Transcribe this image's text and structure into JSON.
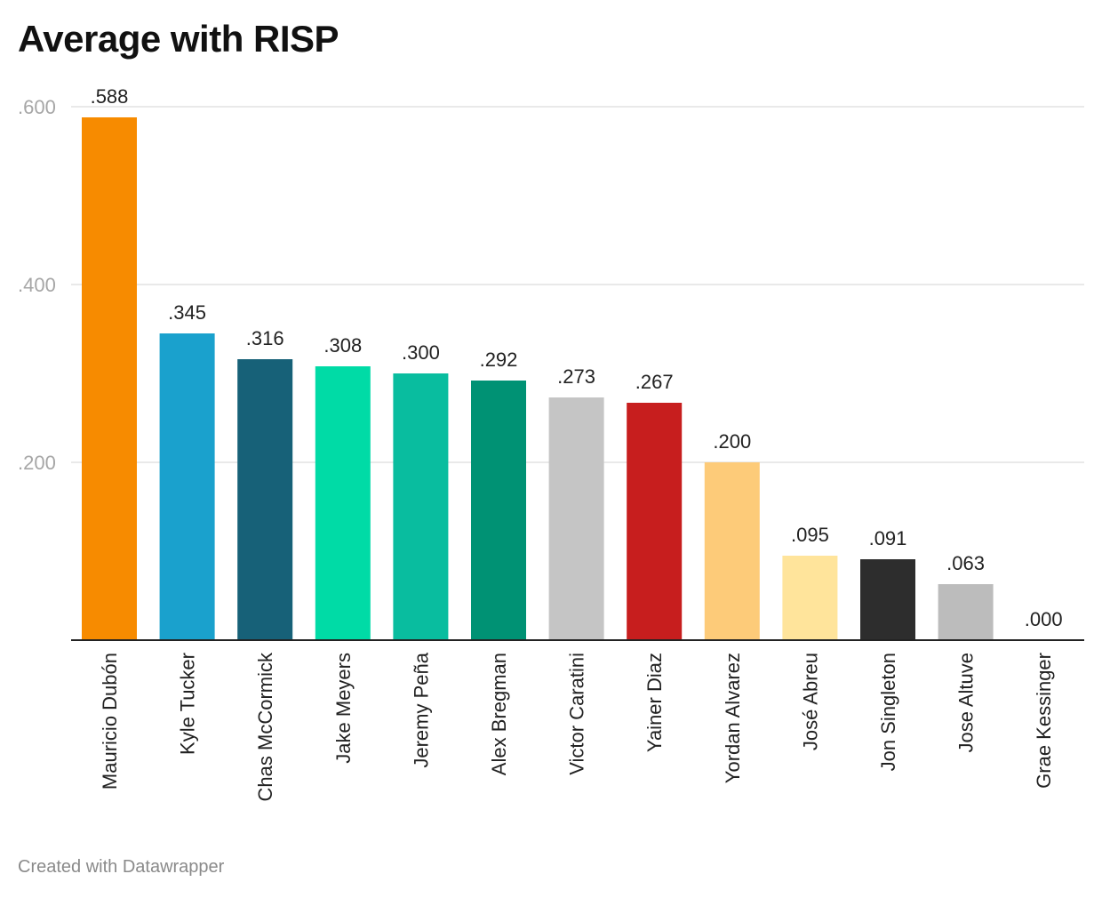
{
  "title": "Average with RISP",
  "footer": "Created with Datawrapper",
  "chart_data": {
    "type": "bar",
    "title": "Average with RISP",
    "xlabel": "",
    "ylabel": "",
    "ylim": [
      0,
      0.6
    ],
    "yticks": [
      0.2,
      0.4,
      0.6
    ],
    "ytick_labels": [
      ".200",
      ".400",
      ".600"
    ],
    "grid": true,
    "categories": [
      "Mauricio Dubón",
      "Kyle Tucker",
      "Chas McCormick",
      "Jake Meyers",
      "Jeremy Peña",
      "Alex Bregman",
      "Victor Caratini",
      "Yainer Diaz",
      "Yordan Alvarez",
      "José Abreu",
      "Jon Singleton",
      "Jose Altuve",
      "Grae Kessinger"
    ],
    "values": [
      0.588,
      0.345,
      0.316,
      0.308,
      0.3,
      0.292,
      0.273,
      0.267,
      0.2,
      0.095,
      0.091,
      0.063,
      0.0
    ],
    "value_labels": [
      ".588",
      ".345",
      ".316",
      ".308",
      ".300",
      ".292",
      ".273",
      ".267",
      ".200",
      ".095",
      ".091",
      ".063",
      ".000"
    ],
    "colors": [
      "#f78b00",
      "#1aa1cd",
      "#176178",
      "#00dba6",
      "#09bd9f",
      "#009274",
      "#c5c5c5",
      "#c71e1e",
      "#fdcb79",
      "#ffe49b",
      "#2d2d2d",
      "#bcbcbc",
      "#bcbcbc"
    ]
  }
}
